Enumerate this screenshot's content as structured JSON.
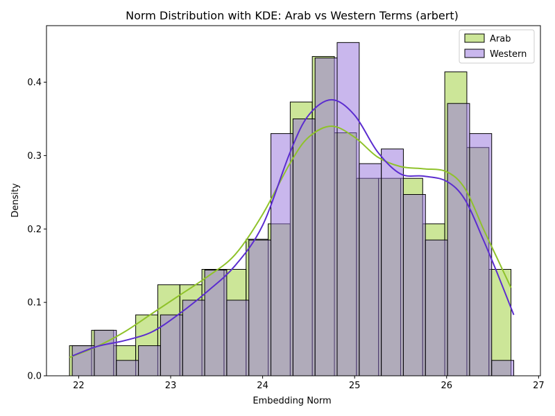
{
  "chart_data": {
    "type": "histogram",
    "title": "Norm Distribution with KDE: Arab vs Western Terms (arbert)",
    "xlabel": "Embedding Norm",
    "ylabel": "Density",
    "xlim": [
      21.65,
      27.02
    ],
    "ylim": [
      0,
      0.477
    ],
    "xticks": [
      22,
      23,
      24,
      25,
      26,
      27
    ],
    "yticks": [
      0.0,
      0.1,
      0.2,
      0.3,
      0.4
    ],
    "legend_position": "upper right",
    "series": [
      {
        "name": "Arab",
        "fill": "#9acd32",
        "line": "#8fc22a",
        "bins": [
          [
            21.9,
            22.14,
            0.041
          ],
          [
            22.14,
            22.38,
            0.062
          ],
          [
            22.38,
            22.62,
            0.041
          ],
          [
            22.62,
            22.86,
            0.083
          ],
          [
            22.86,
            23.1,
            0.124
          ],
          [
            23.1,
            23.34,
            0.124
          ],
          [
            23.34,
            23.58,
            0.145
          ],
          [
            23.58,
            23.82,
            0.145
          ],
          [
            23.82,
            24.06,
            0.186
          ],
          [
            24.06,
            24.3,
            0.207
          ],
          [
            24.3,
            24.54,
            0.373
          ],
          [
            24.54,
            24.78,
            0.435
          ],
          [
            24.78,
            25.02,
            0.331
          ],
          [
            25.02,
            25.26,
            0.269
          ],
          [
            25.26,
            25.5,
            0.269
          ],
          [
            25.5,
            25.74,
            0.269
          ],
          [
            25.74,
            25.98,
            0.207
          ],
          [
            25.98,
            26.22,
            0.414
          ],
          [
            26.22,
            26.46,
            0.311
          ],
          [
            26.46,
            26.7,
            0.145
          ]
        ],
        "kde": {
          "x": [
            21.9,
            22.2,
            22.5,
            22.8,
            23.1,
            23.4,
            23.7,
            24.0,
            24.3,
            24.5,
            24.75,
            25.0,
            25.25,
            25.5,
            25.75,
            26.0,
            26.2,
            26.4,
            26.55,
            26.7
          ],
          "y": [
            0.025,
            0.04,
            0.06,
            0.085,
            0.11,
            0.135,
            0.165,
            0.22,
            0.29,
            0.325,
            0.34,
            0.325,
            0.298,
            0.285,
            0.282,
            0.278,
            0.255,
            0.2,
            0.16,
            0.12
          ]
        }
      },
      {
        "name": "Western",
        "fill": "#9370db",
        "line": "#5b2ccf",
        "bins": [
          [
            21.93,
            22.17,
            0.041
          ],
          [
            22.17,
            22.41,
            0.062
          ],
          [
            22.41,
            22.65,
            0.021
          ],
          [
            22.65,
            22.89,
            0.041
          ],
          [
            22.89,
            23.13,
            0.083
          ],
          [
            23.13,
            23.37,
            0.103
          ],
          [
            23.37,
            23.61,
            0.144
          ],
          [
            23.61,
            23.85,
            0.103
          ],
          [
            23.85,
            24.09,
            0.185
          ],
          [
            24.09,
            24.33,
            0.33
          ],
          [
            24.33,
            24.57,
            0.35
          ],
          [
            24.57,
            24.81,
            0.433
          ],
          [
            24.81,
            25.05,
            0.454
          ],
          [
            25.05,
            25.29,
            0.289
          ],
          [
            25.29,
            25.53,
            0.309
          ],
          [
            25.53,
            25.77,
            0.247
          ],
          [
            25.77,
            26.01,
            0.185
          ],
          [
            26.01,
            26.25,
            0.371
          ],
          [
            26.25,
            26.49,
            0.33
          ],
          [
            26.49,
            26.73,
            0.021
          ]
        ],
        "kde": {
          "x": [
            21.93,
            22.2,
            22.5,
            22.8,
            23.1,
            23.4,
            23.7,
            24.0,
            24.3,
            24.5,
            24.75,
            25.0,
            25.25,
            25.5,
            25.75,
            26.0,
            26.2,
            26.4,
            26.55,
            26.73
          ],
          "y": [
            0.027,
            0.04,
            0.048,
            0.06,
            0.085,
            0.115,
            0.15,
            0.205,
            0.305,
            0.355,
            0.376,
            0.355,
            0.305,
            0.275,
            0.272,
            0.265,
            0.24,
            0.185,
            0.14,
            0.083
          ]
        }
      }
    ]
  }
}
